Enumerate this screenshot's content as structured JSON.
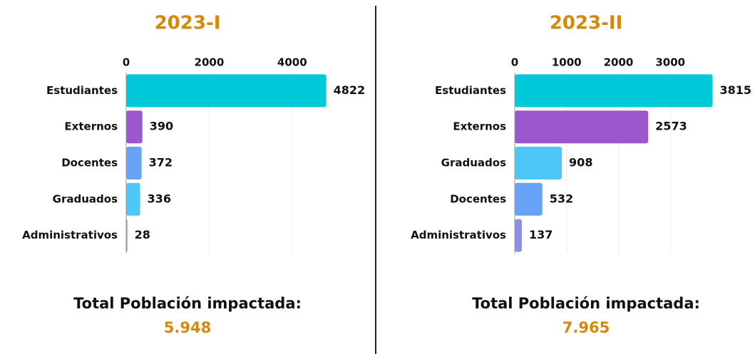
{
  "chart_data": [
    {
      "type": "bar",
      "orientation": "horizontal",
      "title": "2023-I",
      "categories": [
        "Estudiantes",
        "Externos",
        "Docentes",
        "Graduados",
        "Administrativos"
      ],
      "values": [
        4822,
        390,
        372,
        336,
        28
      ],
      "colors": [
        "#00c9d9",
        "#9b57cc",
        "#69a3f7",
        "#4ec7f6",
        "#8b8fe6"
      ],
      "xlim": [
        0,
        5000
      ],
      "xticks": [
        0,
        2000,
        4000
      ],
      "grid": true,
      "annotations": [
        "Total Población impactada:",
        "5.948"
      ]
    },
    {
      "type": "bar",
      "orientation": "horizontal",
      "title": "2023-II",
      "categories": [
        "Estudiantes",
        "Externos",
        "Graduados",
        "Docentes",
        "Administrativos"
      ],
      "values": [
        3815,
        2573,
        908,
        532,
        137
      ],
      "colors": [
        "#00c9d9",
        "#9b57cc",
        "#4ec7f6",
        "#69a3f7",
        "#8b8fe6"
      ],
      "xlim": [
        0,
        4000
      ],
      "xticks": [
        0,
        1000,
        2000,
        3000
      ],
      "grid": true,
      "annotations": [
        "Total Población impactada:",
        "7.965"
      ]
    }
  ]
}
